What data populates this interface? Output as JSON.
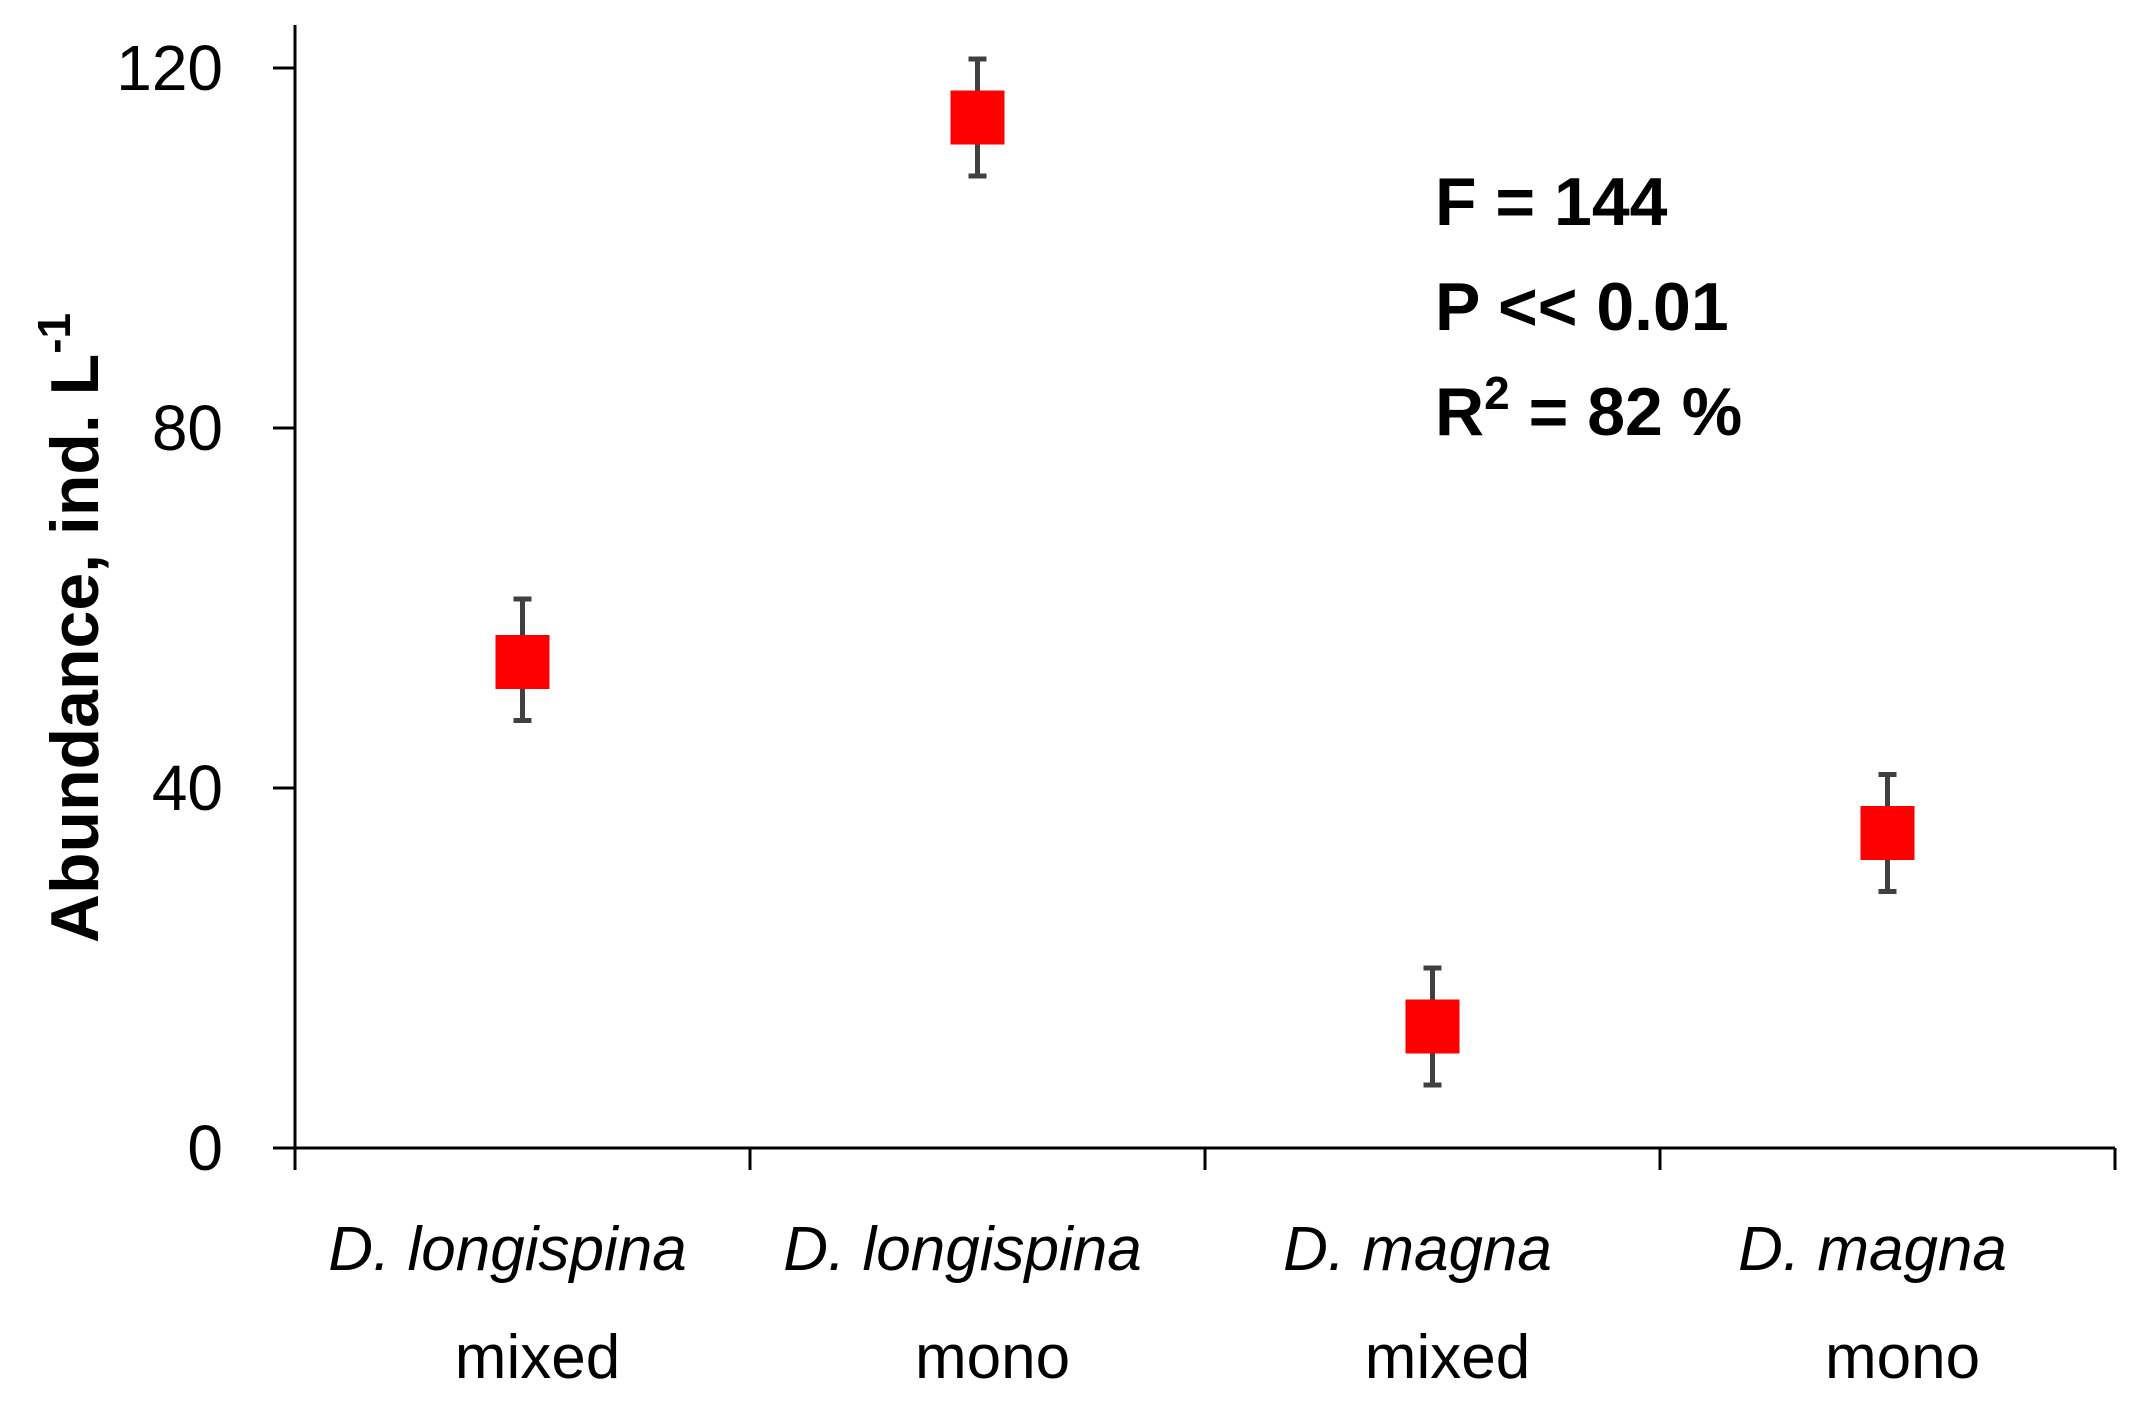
{
  "chart_data": {
    "type": "scatter",
    "title": "",
    "xlabel": "",
    "ylabel": "Abundance, ind. L",
    "ylabel_sup": "-1",
    "ylim": [
      0,
      120
    ],
    "yticks": [
      0,
      40,
      80,
      120
    ],
    "grid": false,
    "categories": [
      {
        "species": "D. longispina",
        "treatment": "mixed"
      },
      {
        "species": "D. longispina",
        "treatment": "mono"
      },
      {
        "species": "D. magna",
        "treatment": "mixed"
      },
      {
        "species": "D. magna",
        "treatment": "mono"
      }
    ],
    "series": [
      {
        "name": "Abundance",
        "marker": "square",
        "color": "#ff0000",
        "values": [
          54,
          114.5,
          13.5,
          35
        ],
        "error_low": [
          47.5,
          108,
          7,
          28.5
        ],
        "error_high": [
          61,
          121,
          20,
          41.5
        ]
      }
    ],
    "annotations": {
      "f_stat": "F = 144",
      "p_value": "P << 0.01",
      "r2_prefix": "R",
      "r2_sup": "2",
      "r2_suffix": " = 82 %"
    }
  }
}
